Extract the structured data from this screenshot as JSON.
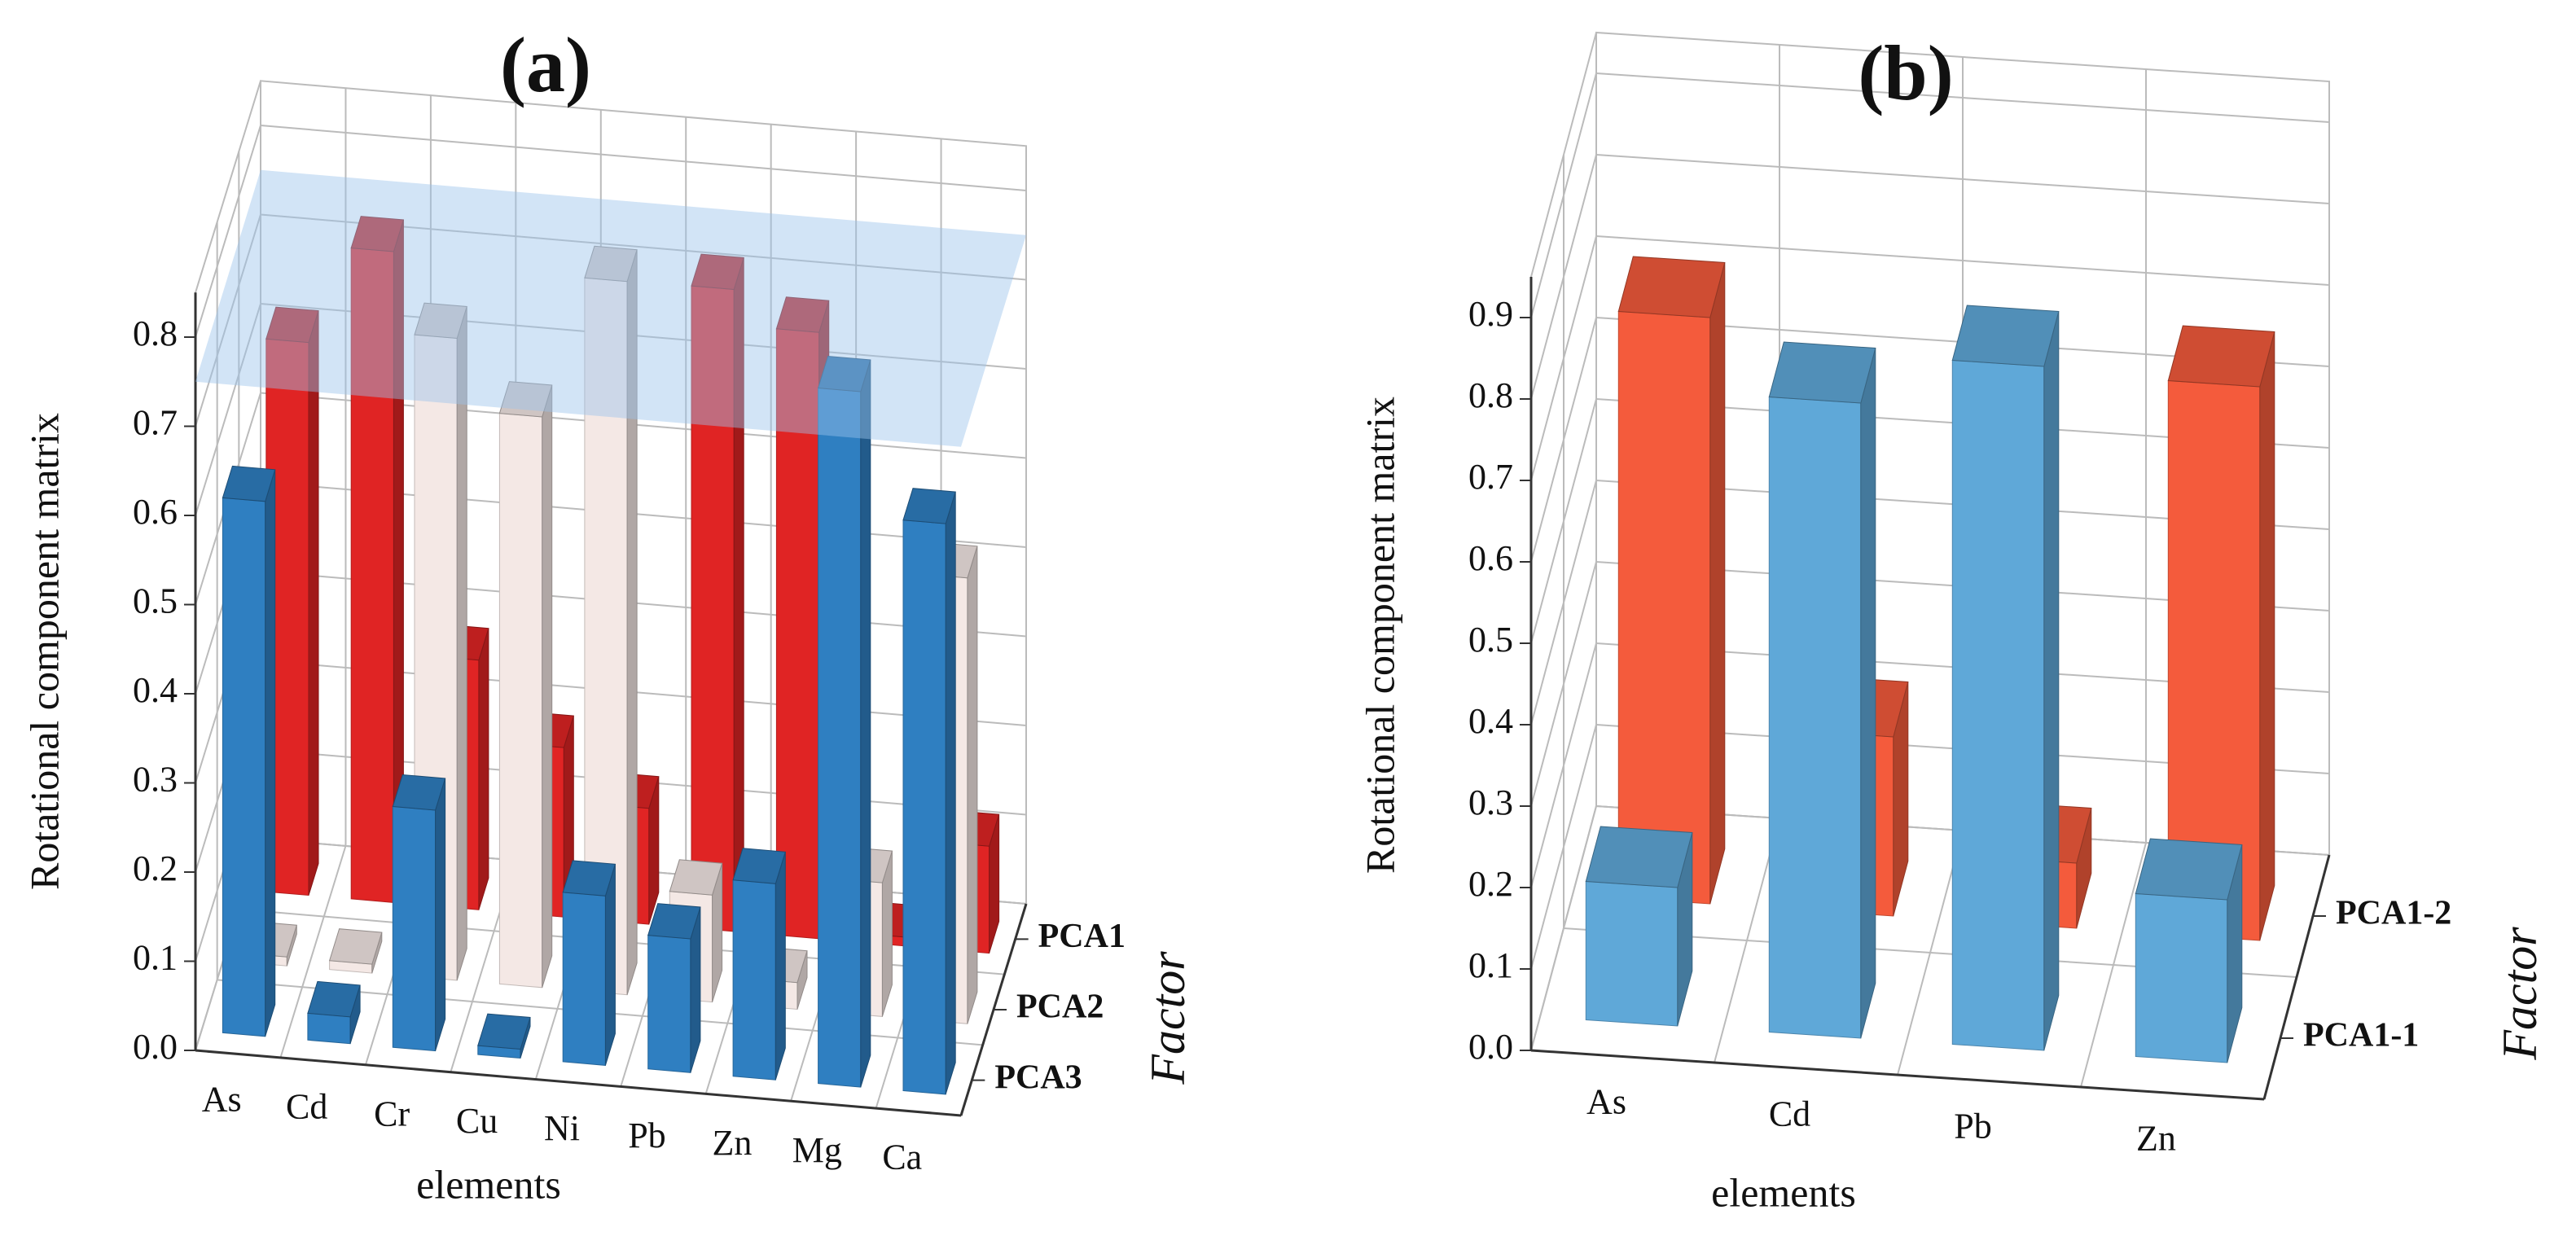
{
  "chart_data": [
    {
      "type": "bar3d",
      "title": "(a)",
      "ylabel": "Rotational component matrix",
      "xlabel": "elements",
      "zlabel": "Factor",
      "categories": [
        "As",
        "Cd",
        "Cr",
        "Cu",
        "Ni",
        "Pb",
        "Zn",
        "Mg",
        "Ca"
      ],
      "series": [
        {
          "name": "PCA1",
          "color": "#e02424",
          "values": [
            0.62,
            0.73,
            0.28,
            0.19,
            0.13,
            0.72,
            0.68,
            0.01,
            0.12
          ]
        },
        {
          "name": "PCA2",
          "color": "#f4e8e5",
          "values": [
            0.01,
            0.01,
            0.72,
            0.64,
            0.8,
            0.12,
            0.03,
            0.15,
            0.5
          ]
        },
        {
          "name": "PCA3",
          "color": "#2f7fc1",
          "values": [
            0.6,
            0.03,
            0.27,
            0.01,
            0.19,
            0.15,
            0.22,
            0.78,
            0.64
          ]
        }
      ],
      "threshold": 0.75,
      "ylim": [
        0,
        0.85
      ],
      "yticks": [
        {
          "value": 0,
          "label": "0.0"
        },
        0.1,
        0.2,
        0.3,
        0.4,
        0.5,
        0.6,
        0.7,
        0.8
      ],
      "grid": true
    },
    {
      "type": "bar3d",
      "title": "(b)",
      "ylabel": "Rotational component matrix",
      "xlabel": "elements",
      "zlabel": "Factor",
      "categories": [
        "As",
        "Cd",
        "Pb",
        "Zn"
      ],
      "series": [
        {
          "name": "PCA1-2",
          "color": "#f45b3c",
          "values": [
            0.72,
            0.22,
            0.08,
            0.68
          ]
        },
        {
          "name": "PCA1-1",
          "color": "#5fa8d8",
          "values": [
            0.17,
            0.78,
            0.84,
            0.2
          ]
        }
      ],
      "ylim": [
        0,
        0.95
      ],
      "yticks": [
        {
          "value": 0,
          "label": "0.0"
        },
        0.1,
        0.2,
        0.3,
        0.4,
        0.5,
        0.6,
        0.7,
        0.8,
        0.9
      ],
      "grid": true
    }
  ]
}
